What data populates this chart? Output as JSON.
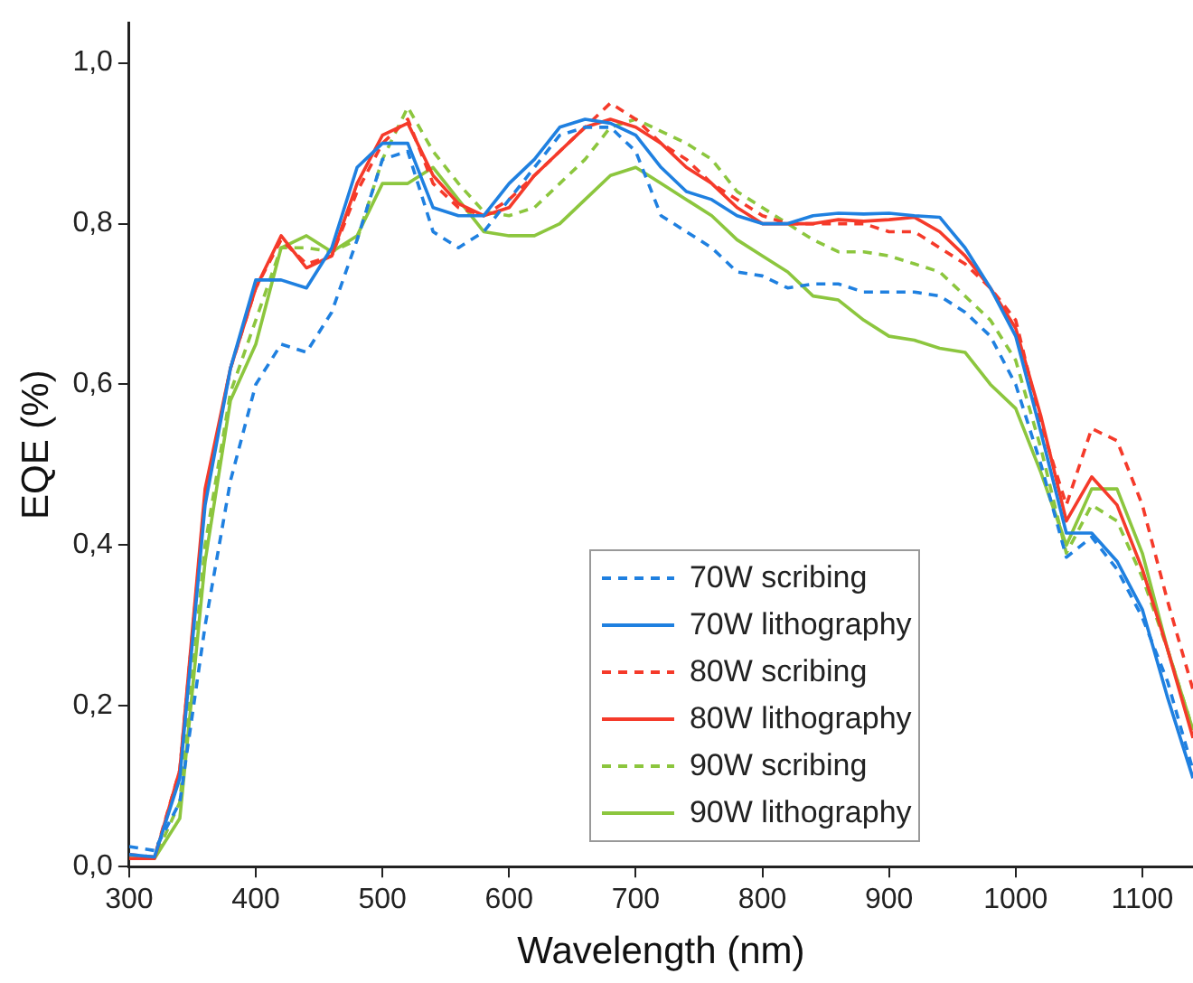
{
  "chart_data": {
    "type": "line",
    "xlabel": "Wavelength (nm)",
    "ylabel": "EQE (%)",
    "x": [
      300,
      320,
      340,
      360,
      380,
      400,
      420,
      440,
      460,
      480,
      500,
      520,
      540,
      560,
      580,
      600,
      620,
      640,
      660,
      680,
      700,
      720,
      740,
      760,
      780,
      800,
      820,
      840,
      860,
      880,
      900,
      920,
      940,
      960,
      980,
      1000,
      1020,
      1040,
      1060,
      1080,
      1100,
      1120,
      1140
    ],
    "xlim": [
      300,
      1140
    ],
    "xticks": [
      300,
      400,
      500,
      600,
      700,
      800,
      900,
      1000,
      1100
    ],
    "ylim": [
      0,
      1.05
    ],
    "yticks": [
      {
        "value": 0,
        "label": "0,0"
      },
      {
        "value": 0.2,
        "label": "0,2"
      },
      {
        "value": 0.4,
        "label": "0,4"
      },
      {
        "value": 0.6,
        "label": "0,6"
      },
      {
        "value": 0.8,
        "label": "0,8"
      },
      {
        "value": 1,
        "label": "1,0"
      }
    ],
    "grid": false,
    "legend": "bottom right",
    "marker": "none",
    "series": [
      {
        "name": "70W scribing",
        "color": "#1f80e0",
        "line_style": "dashed",
        "values": [
          0.025,
          0.02,
          0.08,
          0.3,
          0.48,
          0.6,
          0.65,
          0.64,
          0.69,
          0.78,
          0.88,
          0.89,
          0.79,
          0.77,
          0.79,
          0.83,
          0.87,
          0.91,
          0.92,
          0.92,
          0.89,
          0.81,
          0.79,
          0.77,
          0.74,
          0.735,
          0.72,
          0.725,
          0.725,
          0.715,
          0.715,
          0.715,
          0.71,
          0.69,
          0.66,
          0.6,
          0.5,
          0.385,
          0.41,
          0.37,
          0.31,
          0.23,
          0.12
        ]
      },
      {
        "name": "70W lithography",
        "color": "#1f80e0",
        "line_style": "solid",
        "values": [
          0.015,
          0.012,
          0.11,
          0.45,
          0.62,
          0.73,
          0.73,
          0.72,
          0.77,
          0.87,
          0.9,
          0.9,
          0.82,
          0.81,
          0.81,
          0.85,
          0.88,
          0.92,
          0.93,
          0.925,
          0.91,
          0.87,
          0.84,
          0.83,
          0.81,
          0.8,
          0.8,
          0.81,
          0.813,
          0.812,
          0.813,
          0.81,
          0.808,
          0.77,
          0.72,
          0.66,
          0.54,
          0.415,
          0.415,
          0.38,
          0.32,
          0.21,
          0.11
        ]
      },
      {
        "name": "80W scribing",
        "color": "#f53a2a",
        "line_style": "dashed",
        "values": [
          0.015,
          0.012,
          0.12,
          0.46,
          0.62,
          0.72,
          0.78,
          0.75,
          0.76,
          0.84,
          0.9,
          0.93,
          0.85,
          0.82,
          0.81,
          0.83,
          0.86,
          0.89,
          0.92,
          0.95,
          0.93,
          0.9,
          0.88,
          0.85,
          0.83,
          0.81,
          0.8,
          0.8,
          0.8,
          0.8,
          0.79,
          0.79,
          0.77,
          0.75,
          0.72,
          0.68,
          0.55,
          0.45,
          0.545,
          0.53,
          0.45,
          0.33,
          0.22
        ]
      },
      {
        "name": "80W lithography",
        "color": "#f53a2a",
        "line_style": "solid",
        "values": [
          0.01,
          0.01,
          0.12,
          0.47,
          0.62,
          0.72,
          0.785,
          0.745,
          0.76,
          0.85,
          0.91,
          0.925,
          0.86,
          0.825,
          0.81,
          0.82,
          0.86,
          0.89,
          0.92,
          0.93,
          0.92,
          0.9,
          0.87,
          0.85,
          0.82,
          0.8,
          0.8,
          0.8,
          0.805,
          0.803,
          0.805,
          0.808,
          0.79,
          0.76,
          0.72,
          0.67,
          0.56,
          0.43,
          0.485,
          0.45,
          0.37,
          0.27,
          0.16
        ]
      },
      {
        "name": "90W scribing",
        "color": "#8cc63e",
        "line_style": "dashed",
        "values": [
          0.01,
          0.01,
          0.08,
          0.4,
          0.59,
          0.68,
          0.77,
          0.77,
          0.765,
          0.78,
          0.88,
          0.945,
          0.89,
          0.85,
          0.815,
          0.81,
          0.82,
          0.85,
          0.88,
          0.92,
          0.93,
          0.915,
          0.9,
          0.88,
          0.84,
          0.82,
          0.8,
          0.78,
          0.765,
          0.765,
          0.76,
          0.75,
          0.74,
          0.71,
          0.68,
          0.63,
          0.52,
          0.39,
          0.45,
          0.43,
          0.36,
          0.27,
          0.17
        ]
      },
      {
        "name": "90W lithography",
        "color": "#8cc63e",
        "line_style": "solid",
        "values": [
          0.01,
          0.01,
          0.06,
          0.38,
          0.58,
          0.65,
          0.77,
          0.785,
          0.765,
          0.785,
          0.85,
          0.85,
          0.87,
          0.83,
          0.79,
          0.785,
          0.785,
          0.8,
          0.83,
          0.86,
          0.87,
          0.85,
          0.83,
          0.81,
          0.78,
          0.76,
          0.74,
          0.71,
          0.705,
          0.68,
          0.66,
          0.655,
          0.645,
          0.64,
          0.6,
          0.57,
          0.49,
          0.4,
          0.47,
          0.47,
          0.39,
          0.27,
          0.17
        ]
      }
    ]
  }
}
